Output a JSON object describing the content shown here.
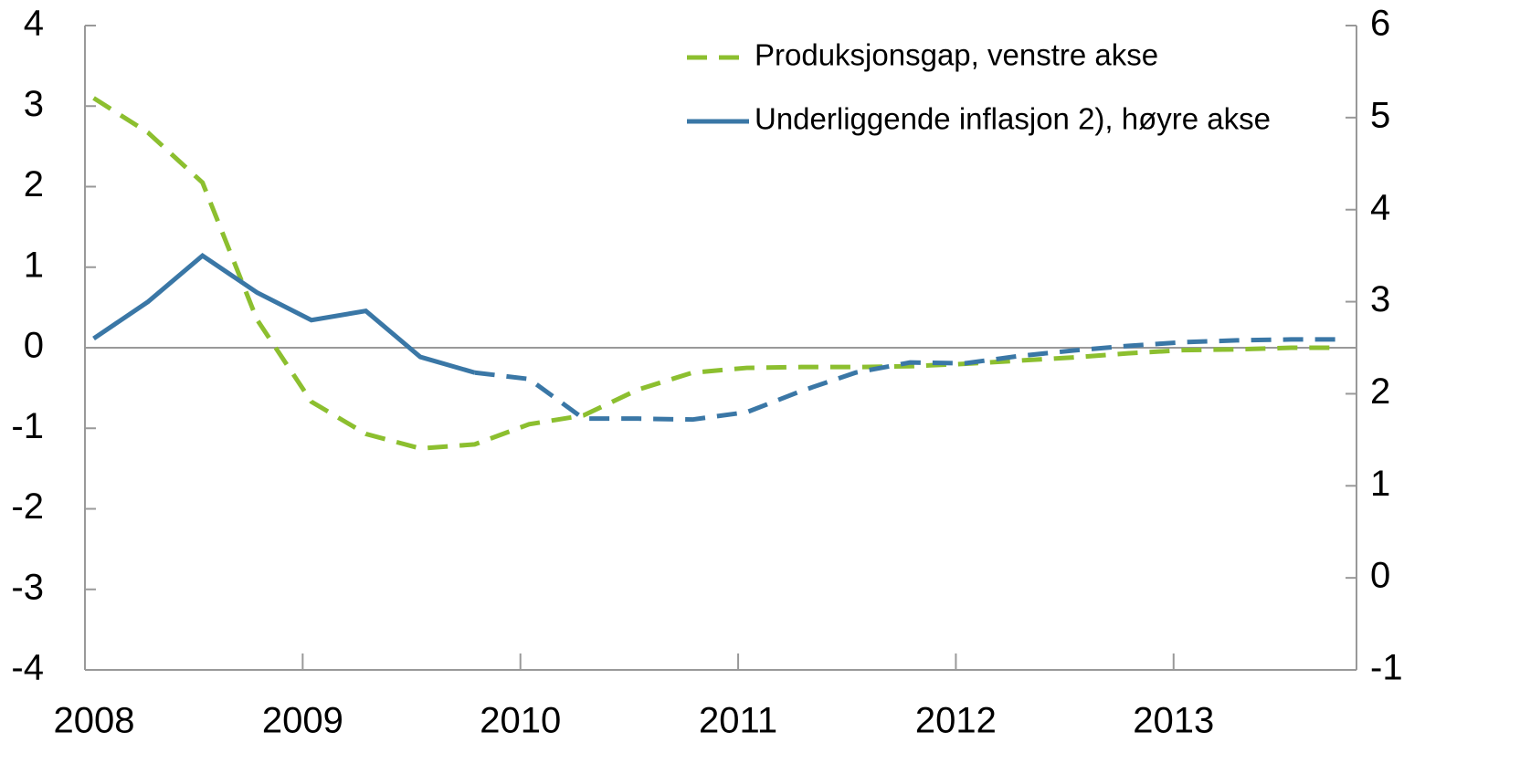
{
  "chart_data": {
    "type": "line",
    "x": [
      2008.04,
      2008.29,
      2008.54,
      2008.79,
      2009.04,
      2009.29,
      2009.54,
      2009.79,
      2010.04,
      2010.29,
      2010.54,
      2010.79,
      2011.04,
      2011.29,
      2011.54,
      2011.79,
      2012.04,
      2012.29,
      2012.54,
      2012.79,
      2013.04,
      2013.29,
      2013.54,
      2013.76
    ],
    "xlim": [
      2008,
      2013.84
    ],
    "xticks": [
      2008,
      2009,
      2010,
      2011,
      2012,
      2013
    ],
    "ylim": [
      -4,
      4
    ],
    "yticks": [
      -4,
      -3,
      -2,
      -1,
      0,
      1,
      2,
      3,
      4
    ],
    "y2lim": [
      -1,
      6
    ],
    "y2ticks": [
      -1,
      0,
      1,
      2,
      3,
      4,
      5,
      6
    ],
    "legend": "top-right",
    "series": [
      {
        "name": "Produksjonsgap, venstre akse",
        "color": "#8cbf2f",
        "dash_from_index": 0,
        "values": [
          3.1,
          2.67,
          2.05,
          0.35,
          -0.67,
          -1.07,
          -1.25,
          -1.2,
          -0.95,
          -0.84,
          -0.52,
          -0.31,
          -0.25,
          -0.24,
          -0.24,
          -0.23,
          -0.2,
          -0.16,
          -0.12,
          -0.07,
          -0.03,
          -0.02,
          0,
          0
        ]
      },
      {
        "name": "Underliggende inflasjon 2), høyre akse",
        "color": "#3a77a6",
        "axis": "y2",
        "dash_from_index": 7,
        "values": [
          2.6,
          3.0,
          3.5,
          3.1,
          2.8,
          2.9,
          2.4,
          2.23,
          2.16,
          1.73,
          1.73,
          1.72,
          1.8,
          2.03,
          2.23,
          2.34,
          2.33,
          2.41,
          2.47,
          2.52,
          2.56,
          2.58,
          2.59,
          2.59
        ]
      }
    ]
  }
}
